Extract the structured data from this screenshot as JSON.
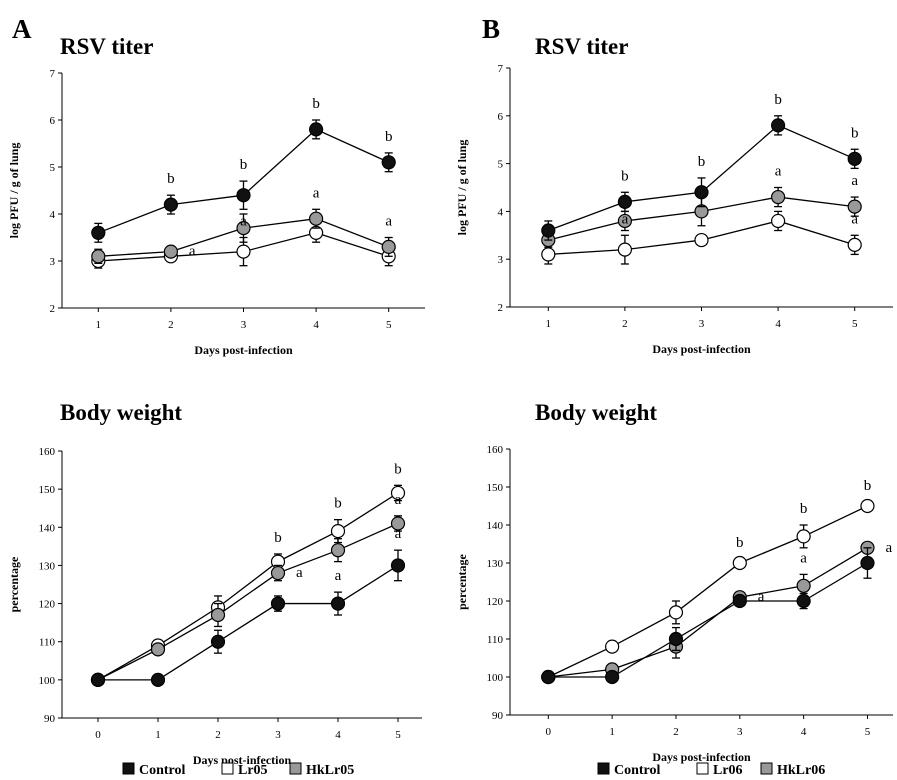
{
  "panel_labels": [
    "A",
    "B"
  ],
  "colors": {
    "Control": "#111111",
    "Lr": "#ffffff",
    "HkLr": "#999999",
    "axis": "#000000"
  },
  "legends": [
    {
      "items": [
        {
          "label": "Control",
          "color": "#111111"
        },
        {
          "label": "Lr05",
          "color": "#ffffff"
        },
        {
          "label": "HkLr05",
          "color": "#999999"
        }
      ]
    },
    {
      "items": [
        {
          "label": "Control",
          "color": "#111111"
        },
        {
          "label": "Lr06",
          "color": "#ffffff"
        },
        {
          "label": "HkLr06",
          "color": "#999999"
        }
      ]
    }
  ],
  "chart_data": [
    {
      "type": "line",
      "panel": "A",
      "title": "RSV titer",
      "xlabel": "Days post-infection",
      "ylabel": "log PFU / g of lung",
      "x": [
        1,
        2,
        3,
        4,
        5
      ],
      "xlim": [
        0.5,
        5.5
      ],
      "ylim": [
        2,
        7
      ],
      "yticks": [
        2,
        3,
        4,
        5,
        6,
        7
      ],
      "series": [
        {
          "key": "Control",
          "values": [
            3.6,
            4.2,
            4.4,
            5.8,
            5.1
          ],
          "errors": [
            0.2,
            0.2,
            0.3,
            0.2,
            0.2
          ],
          "marks": [
            "",
            "b",
            "b",
            "b",
            "b"
          ]
        },
        {
          "key": "Lr",
          "values": [
            3.0,
            3.1,
            3.2,
            3.6,
            3.1
          ],
          "errors": [
            0.15,
            0.1,
            0.3,
            0.2,
            0.2
          ],
          "marks": [
            "",
            "",
            "a",
            "",
            ""
          ]
        },
        {
          "key": "HkLr",
          "values": [
            3.1,
            3.2,
            3.7,
            3.9,
            3.3
          ],
          "errors": [
            0.15,
            0.1,
            0.3,
            0.2,
            0.2
          ],
          "marks": [
            "",
            "a",
            "",
            "a",
            "a"
          ]
        }
      ]
    },
    {
      "type": "line",
      "panel": "B",
      "title": "RSV titer",
      "xlabel": "Days post-infection",
      "ylabel": "log PFU / g of lung",
      "x": [
        1,
        2,
        3,
        4,
        5
      ],
      "xlim": [
        0.5,
        5.5
      ],
      "ylim": [
        2,
        7
      ],
      "yticks": [
        2,
        3,
        4,
        5,
        6,
        7
      ],
      "series": [
        {
          "key": "Control",
          "values": [
            3.6,
            4.2,
            4.4,
            5.8,
            5.1
          ],
          "errors": [
            0.2,
            0.2,
            0.3,
            0.2,
            0.2
          ],
          "marks": [
            "",
            "b",
            "b",
            "b",
            "b"
          ]
        },
        {
          "key": "Lr",
          "values": [
            3.1,
            3.2,
            3.4,
            3.8,
            3.3
          ],
          "errors": [
            0.2,
            0.3,
            0.1,
            0.2,
            0.2
          ],
          "marks": [
            "",
            "a",
            "",
            "",
            "a"
          ]
        },
        {
          "key": "HkLr",
          "values": [
            3.4,
            3.8,
            4.0,
            4.3,
            4.1
          ],
          "errors": [
            0.15,
            0.2,
            0.3,
            0.2,
            0.2
          ],
          "marks": [
            "",
            "",
            "",
            "a",
            "a"
          ]
        }
      ]
    },
    {
      "type": "line",
      "panel": "A",
      "title": "Body weight",
      "xlabel": "Days post-infection",
      "ylabel": "percentage",
      "x": [
        0,
        1,
        2,
        3,
        4,
        5
      ],
      "xlim": [
        -0.6,
        5.4
      ],
      "ylim": [
        90,
        160
      ],
      "yticks": [
        90,
        100,
        110,
        120,
        130,
        140,
        150,
        160
      ],
      "series": [
        {
          "key": "Control",
          "values": [
            100,
            100,
            110,
            120,
            120,
            130
          ],
          "errors": [
            1,
            1,
            3,
            2,
            3,
            4
          ],
          "marks": [
            "",
            "",
            "",
            "",
            "a",
            "a"
          ]
        },
        {
          "key": "Lr",
          "values": [
            100,
            109,
            119,
            131,
            139,
            149
          ],
          "errors": [
            1,
            1,
            3,
            2,
            3,
            2
          ],
          "marks": [
            "",
            "",
            "",
            "b",
            "b",
            "b"
          ]
        },
        {
          "key": "HkLr",
          "values": [
            100,
            108,
            117,
            128,
            134,
            141
          ],
          "errors": [
            1,
            1,
            3,
            2,
            3,
            2
          ],
          "marks": [
            "",
            "",
            "",
            "a",
            "",
            "a"
          ]
        }
      ]
    },
    {
      "type": "line",
      "panel": "B",
      "title": "Body weight",
      "xlabel": "Days post-infection",
      "ylabel": "percentage",
      "x": [
        0,
        1,
        2,
        3,
        4,
        5
      ],
      "xlim": [
        -0.6,
        5.4
      ],
      "ylim": [
        90,
        160
      ],
      "yticks": [
        90,
        100,
        110,
        120,
        130,
        140,
        150,
        160
      ],
      "series": [
        {
          "key": "Control",
          "values": [
            100,
            100,
            110,
            120,
            120,
            130
          ],
          "errors": [
            1,
            1,
            3,
            1,
            2,
            4
          ],
          "marks": [
            "",
            "",
            "",
            "",
            "",
            ""
          ]
        },
        {
          "key": "Lr",
          "values": [
            100,
            108,
            117,
            130,
            137,
            145
          ],
          "errors": [
            1,
            1,
            3,
            1,
            3,
            1
          ],
          "marks": [
            "",
            "",
            "",
            "b",
            "b",
            "b"
          ]
        },
        {
          "key": "HkLr",
          "values": [
            100,
            102,
            108,
            121,
            124,
            134
          ],
          "errors": [
            1,
            1,
            3,
            1,
            3,
            1
          ],
          "marks": [
            "",
            "",
            "",
            "a",
            "a",
            "a"
          ]
        }
      ]
    }
  ]
}
